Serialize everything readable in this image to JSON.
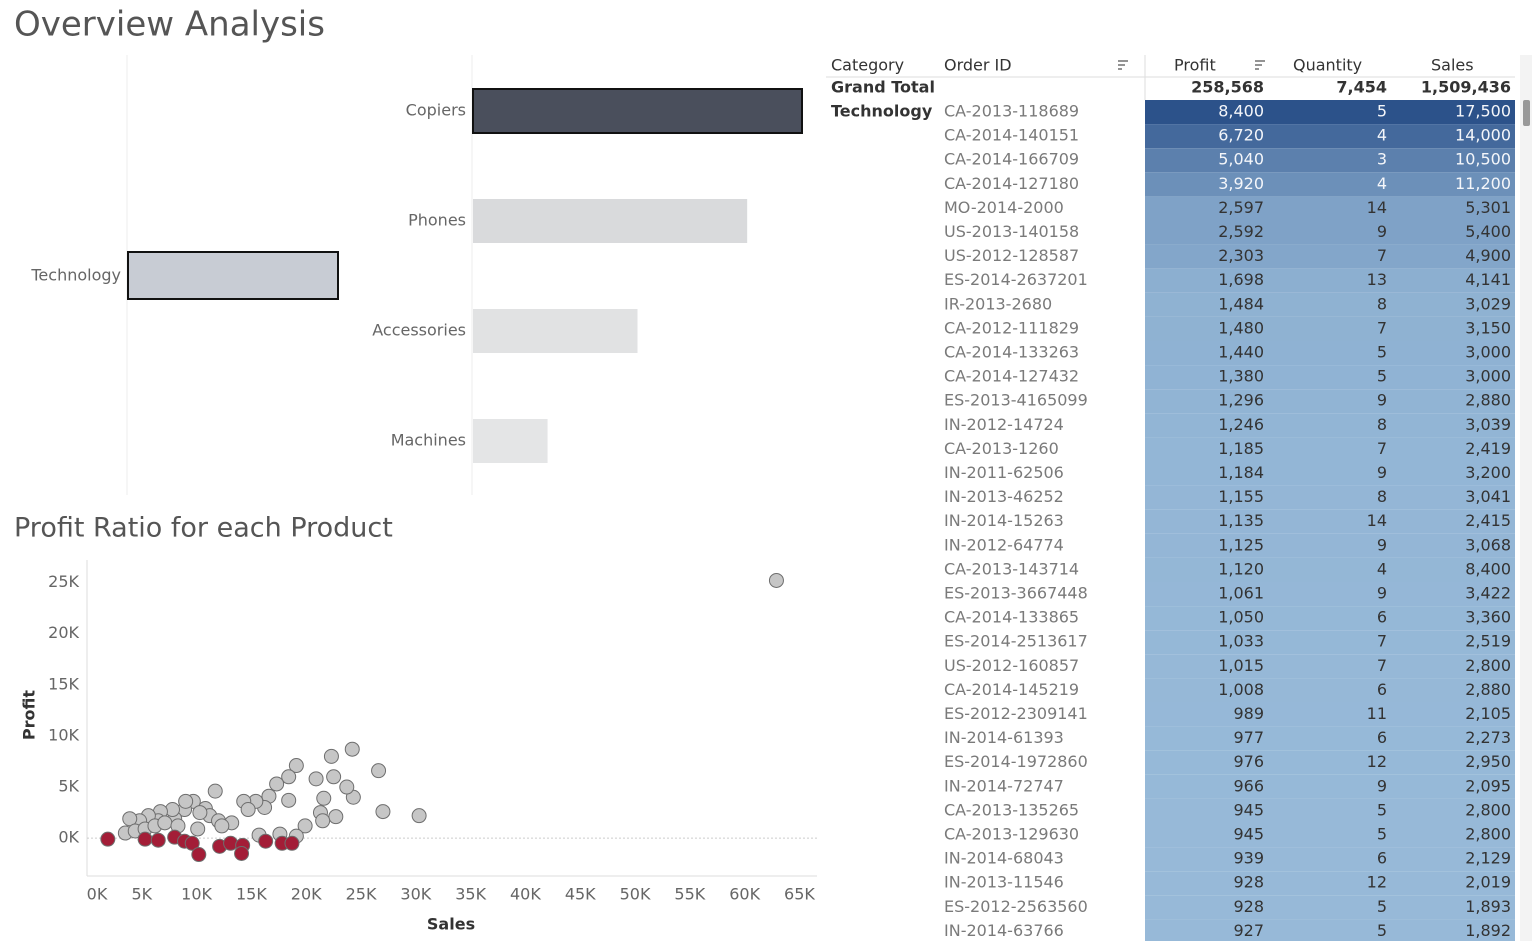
{
  "header": {
    "title": "Overview Analysis"
  },
  "chart_data": [
    {
      "type": "bar",
      "categories": [
        "Technology"
      ],
      "values": [
        384
      ],
      "colors": [
        "#c8ccd4"
      ]
    },
    {
      "type": "bar",
      "categories": [
        "Copiers",
        "Phones",
        "Accessories",
        "Machines"
      ],
      "values": [
        150,
        125,
        75,
        34
      ],
      "colors": [
        "#4a4f5c",
        "#d9dadc",
        "#e1e2e3",
        "#e4e5e6"
      ]
    },
    {
      "type": "scatter",
      "title": "Profit Ratio for each Product",
      "x_label": "Sales",
      "y_label": "Profit",
      "xlim": [
        0,
        66600
      ],
      "ylim": [
        -3700,
        27200
      ],
      "xticks": [
        {
          "value": 0,
          "label": "0K"
        },
        {
          "value": 5000,
          "label": "5K"
        },
        {
          "value": 10000,
          "label": "10K"
        },
        {
          "value": 15000,
          "label": "15K"
        },
        {
          "value": 20000,
          "label": "20K"
        },
        {
          "value": 25000,
          "label": "25K"
        },
        {
          "value": 30000,
          "label": "30K"
        },
        {
          "value": 35000,
          "label": "35K"
        },
        {
          "value": 40000,
          "label": "40K"
        },
        {
          "value": 45000,
          "label": "45K"
        },
        {
          "value": 50000,
          "label": "50K"
        },
        {
          "value": 55000,
          "label": "55K"
        },
        {
          "value": 60000,
          "label": "60K"
        },
        {
          "value": 65000,
          "label": "65K"
        }
      ],
      "yticks": [
        {
          "value": 0,
          "label": "0K"
        },
        {
          "value": 5000,
          "label": "5K"
        },
        {
          "value": 10000,
          "label": "10K"
        },
        {
          "value": 15000,
          "label": "15K"
        },
        {
          "value": 20000,
          "label": "20K"
        },
        {
          "value": 25000,
          "label": "25K"
        }
      ],
      "series": [
        {
          "color": "#c6c6c6",
          "x": [
            62900,
            30300,
            27000,
            26600,
            24200,
            24300,
            22300,
            22500,
            23700,
            22700,
            21300,
            21500,
            20900,
            21600,
            19100,
            18400,
            17300,
            16600,
            18400,
            16200,
            15400,
            14300,
            14700,
            19900,
            19100,
            17600,
            15700,
            13200,
            11700,
            10800,
            11200,
            9700,
            8900,
            8000,
            7800,
            6700,
            6500,
            5600,
            4800,
            3900,
            3500,
            4400,
            5300,
            6200,
            7100,
            8300,
            10100,
            12000,
            12300,
            10300,
            9000
          ],
          "values": [
            25200,
            2200,
            2600,
            6600,
            8700,
            4000,
            8000,
            6000,
            5000,
            2100,
            2500,
            1700,
            5800,
            3900,
            7100,
            6000,
            5300,
            4100,
            3700,
            3000,
            3600,
            3600,
            2800,
            1200,
            200,
            400,
            300,
            1500,
            4600,
            2900,
            2200,
            3600,
            2800,
            1900,
            2800,
            2600,
            1700,
            2200,
            1700,
            1900,
            500,
            700,
            900,
            1200,
            1500,
            1200,
            900,
            1700,
            1200,
            2500,
            3600
          ]
        },
        {
          "color": "#a31d37",
          "x": [
            1900,
            5300,
            6500,
            8000,
            8900,
            9600,
            10200,
            12100,
            13100,
            14200,
            14100,
            16300,
            17800,
            18700
          ],
          "values": [
            -100,
            -100,
            -200,
            100,
            -300,
            -500,
            -1600,
            -800,
            -500,
            -700,
            -1500,
            -300,
            -500,
            -500
          ]
        }
      ]
    }
  ],
  "table": {
    "columns": [
      "Category",
      "Order ID",
      "Profit",
      "Quantity",
      "Sales"
    ],
    "grand_total": {
      "label": "Grand Total",
      "values": [
        "258,568",
        "7,454",
        "1,509,436"
      ]
    },
    "category": "Technology",
    "rows": [
      [
        "CA-2013-118689",
        "8,400",
        "5",
        "17,500"
      ],
      [
        "CA-2014-140151",
        "6,720",
        "4",
        "14,000"
      ],
      [
        "CA-2014-166709",
        "5,040",
        "3",
        "10,500"
      ],
      [
        "CA-2014-127180",
        "3,920",
        "4",
        "11,200"
      ],
      [
        "MO-2014-2000",
        "2,597",
        "14",
        "5,301"
      ],
      [
        "US-2013-140158",
        "2,592",
        "9",
        "5,400"
      ],
      [
        "US-2012-128587",
        "2,303",
        "7",
        "4,900"
      ],
      [
        "ES-2014-2637201",
        "1,698",
        "13",
        "4,141"
      ],
      [
        "IR-2013-2680",
        "1,484",
        "8",
        "3,029"
      ],
      [
        "CA-2012-111829",
        "1,480",
        "7",
        "3,150"
      ],
      [
        "CA-2014-133263",
        "1,440",
        "5",
        "3,000"
      ],
      [
        "CA-2014-127432",
        "1,380",
        "5",
        "3,000"
      ],
      [
        "ES-2013-4165099",
        "1,296",
        "9",
        "2,880"
      ],
      [
        "IN-2012-14724",
        "1,246",
        "8",
        "3,039"
      ],
      [
        "CA-2013-1260",
        "1,185",
        "7",
        "2,419"
      ],
      [
        "IN-2011-62506",
        "1,184",
        "9",
        "3,200"
      ],
      [
        "IN-2013-46252",
        "1,155",
        "8",
        "3,041"
      ],
      [
        "IN-2014-15263",
        "1,135",
        "14",
        "2,415"
      ],
      [
        "IN-2012-64774",
        "1,125",
        "9",
        "3,068"
      ],
      [
        "CA-2013-143714",
        "1,120",
        "4",
        "8,400"
      ],
      [
        "ES-2013-3667448",
        "1,061",
        "9",
        "3,422"
      ],
      [
        "CA-2014-133865",
        "1,050",
        "6",
        "3,360"
      ],
      [
        "ES-2014-2513617",
        "1,033",
        "7",
        "2,519"
      ],
      [
        "US-2012-160857",
        "1,015",
        "7",
        "2,800"
      ],
      [
        "CA-2014-145219",
        "1,008",
        "6",
        "2,880"
      ],
      [
        "ES-2012-2309141",
        "989",
        "11",
        "2,105"
      ],
      [
        "IN-2014-61393",
        "977",
        "6",
        "2,273"
      ],
      [
        "ES-2014-1972860",
        "976",
        "12",
        "2,950"
      ],
      [
        "IN-2014-72747",
        "966",
        "9",
        "2,095"
      ],
      [
        "CA-2013-135265",
        "945",
        "5",
        "2,800"
      ],
      [
        "CA-2013-129630",
        "945",
        "5",
        "2,800"
      ],
      [
        "IN-2014-68043",
        "939",
        "6",
        "2,129"
      ],
      [
        "IN-2013-11546",
        "928",
        "12",
        "2,019"
      ],
      [
        "ES-2012-2563560",
        "928",
        "5",
        "1,893"
      ],
      [
        "IN-2014-63766",
        "927",
        "5",
        "1,892"
      ]
    ]
  }
}
